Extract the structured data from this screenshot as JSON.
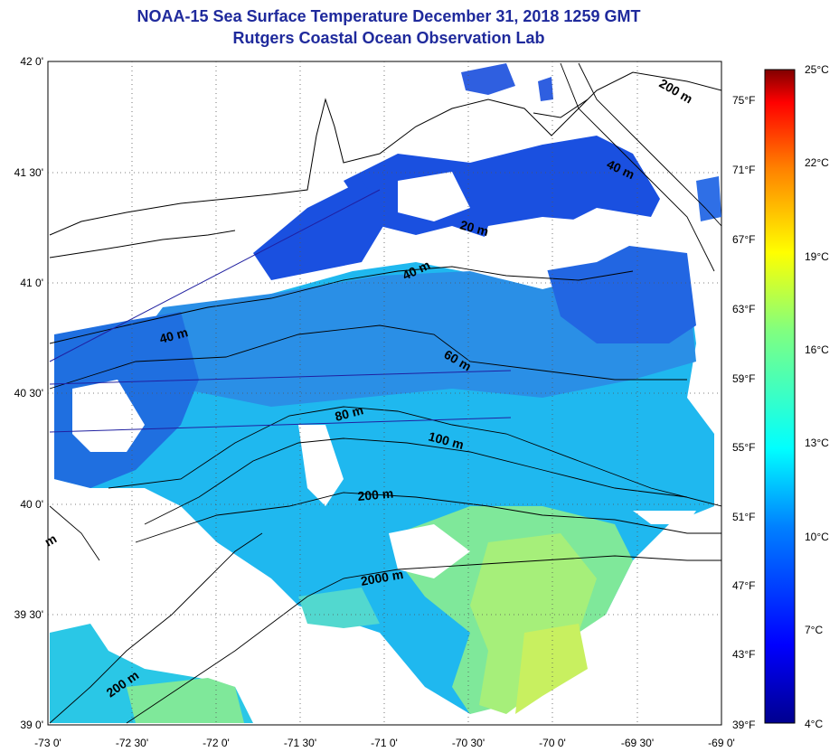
{
  "header": {
    "title": "NOAA-15 Sea Surface Temperature December 31, 2018 1259 GMT",
    "subtitle": "Rutgers Coastal Ocean Observation Lab"
  },
  "map": {
    "lat_labels": [
      "42 0'",
      "41 30'",
      "41 0'",
      "40 30'",
      "40 0'",
      "39 30'",
      "39 0'"
    ],
    "lon_labels": [
      "-73 0'",
      "-72 30'",
      "-72 0'",
      "-71 30'",
      "-71 0'",
      "-70 30'",
      "-70 0'",
      "-69 30'",
      "-69 0'"
    ],
    "contour_labels": [
      "200 m",
      "40 m",
      "20 m",
      "40 m",
      "40 m",
      "60 m",
      "80 m",
      "100 m",
      "200 m",
      "2000 m",
      "200 m",
      "m"
    ],
    "colors": {
      "title": "#1f2a9c",
      "land": "#ffffff",
      "contour": "#000000"
    }
  },
  "colorbar": {
    "celsius": [
      "25°C",
      "22°C",
      "19°C",
      "16°C",
      "13°C",
      "10°C",
      "7°C",
      "4°C"
    ],
    "fahrenheit": [
      "75°F",
      "71°F",
      "67°F",
      "63°F",
      "59°F",
      "55°F",
      "51°F",
      "47°F",
      "43°F",
      "39°F"
    ],
    "range_c": [
      4,
      25
    ]
  }
}
